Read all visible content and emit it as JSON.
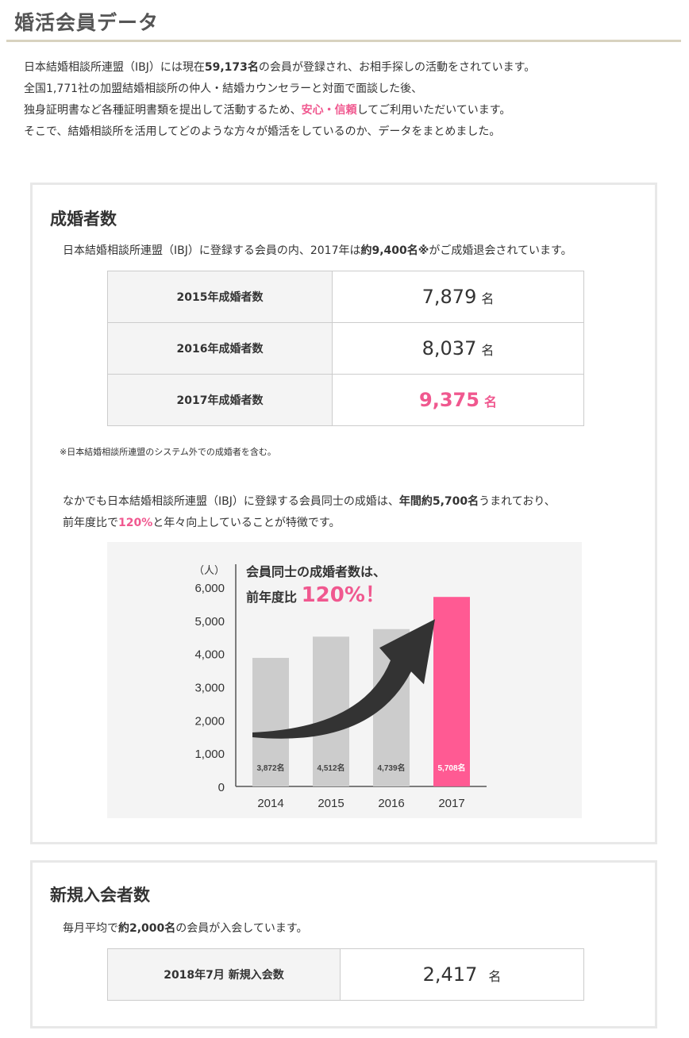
{
  "header": {
    "title": "婚活会員データ"
  },
  "intro": {
    "line1_a": "日本結婚相談所連盟（IBJ）には現在",
    "line1_b": "59,173名",
    "line1_c": "の会員が登録され、お相手探しの活動をされています。",
    "line2": "全国1,771社の加盟結婚相談所の仲人・結婚カウンセラーと対面で面談した後、",
    "line3_a": "独身証明書など各種証明書類を提出して活動するため、",
    "line3_b": "安心・信頼",
    "line3_c": "してご利用いただいています。",
    "line4": "そこで、結婚相談所を活用してどのような方々が婚活をしているのか、データをまとめました。"
  },
  "marriage": {
    "title": "成婚者数",
    "lead_a": "日本結婚相談所連盟（IBJ）に登録する会員の内、2017年は",
    "lead_b": "約9,400名※",
    "lead_c": "がご成婚退会されています。",
    "rows": [
      {
        "label": "2015年成婚者数",
        "value": "7,879",
        "unit": "名"
      },
      {
        "label": "2016年成婚者数",
        "value": "8,037",
        "unit": "名"
      },
      {
        "label": "2017年成婚者数",
        "value": "9,375",
        "unit": "名"
      }
    ],
    "note": "※日本結婚相談所連盟のシステム外での成婚者を含む。",
    "para_a": "なかでも日本結婚相談所連盟（IBJ）に登録する会員同士の成婚は、",
    "para_b": "年間約5,700名",
    "para_c": "うまれており、",
    "para2_a": "前年度比で",
    "para2_b": "120%",
    "para2_c": "と年々向上していることが特徴です。"
  },
  "callout": {
    "line1": "会員同士の成婚者数は、",
    "line2_a": "前年度比",
    "line2_b": "120%！"
  },
  "chart_data": {
    "type": "bar",
    "y_unit": "（人）",
    "categories": [
      "2014",
      "2015",
      "2016",
      "2017"
    ],
    "values": [
      3872,
      4512,
      4739,
      5708
    ],
    "data_labels": [
      "3,872名",
      "4,512名",
      "4,739名",
      "5,708名"
    ],
    "yticks": [
      "0",
      "1,000",
      "2,000",
      "3,000",
      "4,000",
      "5,000",
      "6,000"
    ],
    "ylim": [
      0,
      6000
    ],
    "colors": {
      "normal": "#cccccc",
      "highlight": "#ff5a93",
      "arrow": "#333333"
    }
  },
  "new_members": {
    "title": "新規入会者数",
    "lead_a": "毎月平均で",
    "lead_b": "約2,000名",
    "lead_c": "の会員が入会しています。",
    "row": {
      "label": "2018年7月 新規入会数",
      "value": "2,417",
      "unit": "名"
    }
  }
}
